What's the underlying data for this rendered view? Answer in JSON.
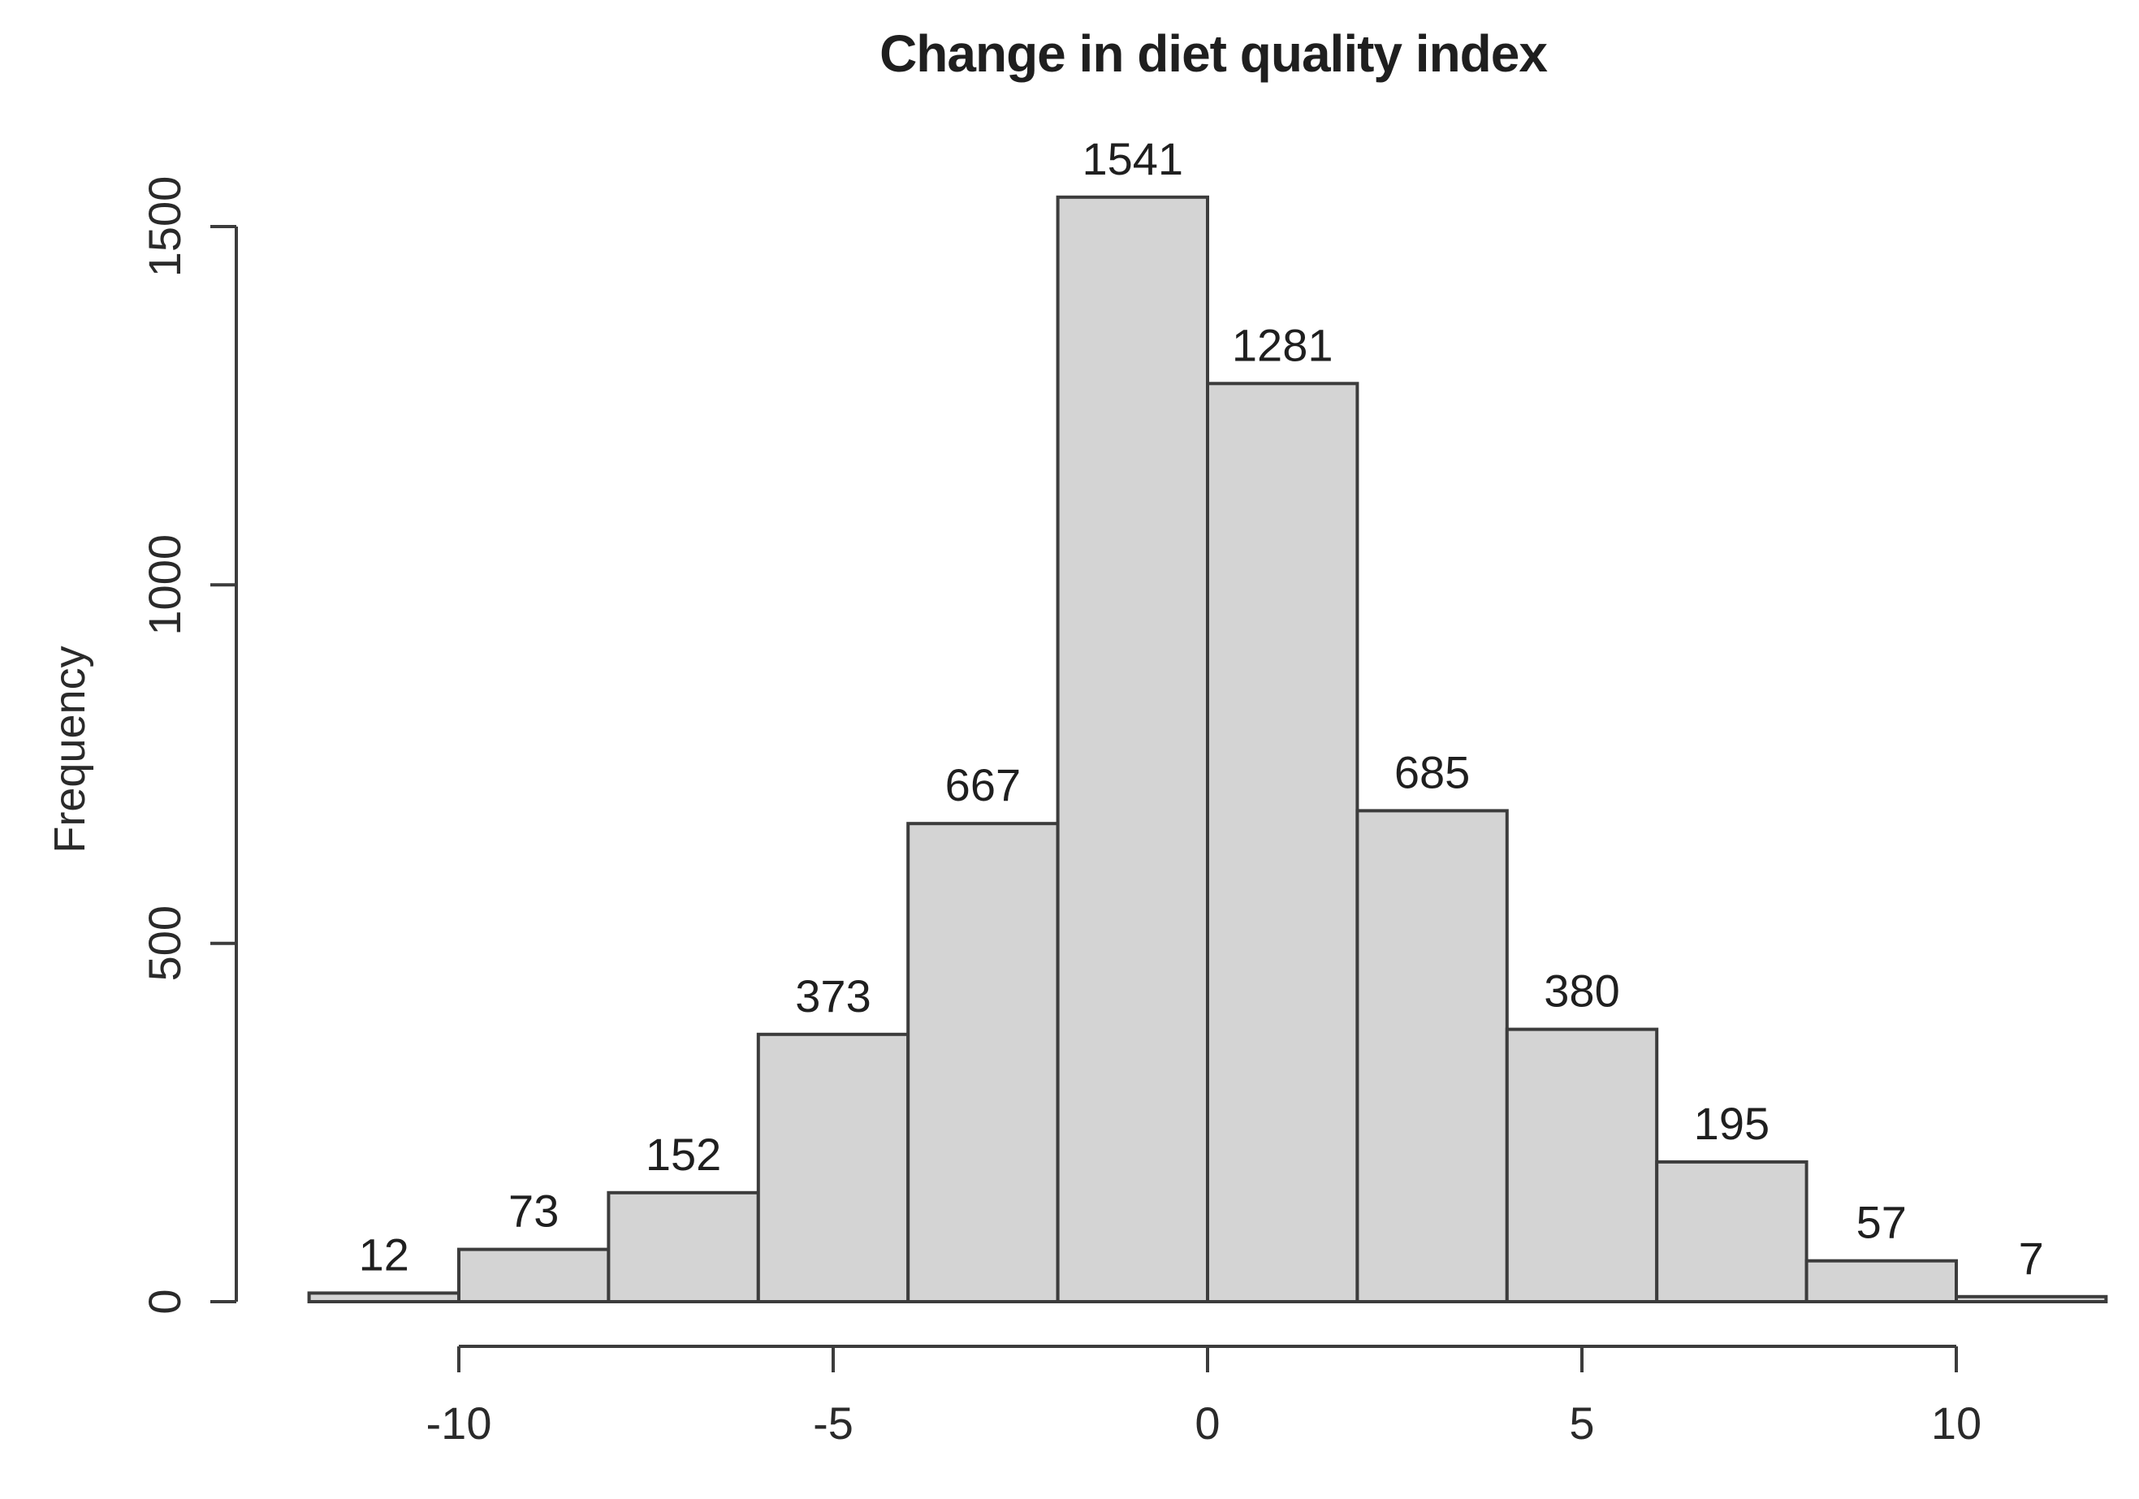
{
  "chart_data": {
    "type": "bar",
    "subtype": "histogram",
    "title": "Change in diet quality index",
    "ylabel": "Frequency",
    "bin_edges": [
      -12,
      -10,
      -8,
      -6,
      -4,
      -2,
      0,
      2,
      4,
      6,
      8,
      10,
      12
    ],
    "values": [
      12,
      73,
      152,
      373,
      667,
      1541,
      1281,
      685,
      380,
      195,
      57,
      7
    ],
    "bar_labels": [
      "12",
      "73",
      "152",
      "373",
      "667",
      "1541",
      "1281",
      "685",
      "380",
      "195",
      "57",
      "7"
    ],
    "x_ticks": [
      -10,
      -5,
      0,
      5,
      10
    ],
    "x_tick_labels": [
      "-10",
      "-5",
      "0",
      "5",
      "10"
    ],
    "y_ticks": [
      0,
      500,
      1000,
      1500
    ],
    "y_tick_labels": [
      "0",
      "500",
      "1000",
      "1500"
    ],
    "xlim": [
      -12,
      12
    ],
    "ylim": [
      0,
      1541
    ],
    "grid": false,
    "legend": "none",
    "colors": {
      "bar_fill": "#d4d4d4",
      "bar_stroke": "#3c3c3c",
      "axis": "#3c3c3c",
      "text": "#1f1f1f",
      "background": "#ffffff"
    }
  }
}
